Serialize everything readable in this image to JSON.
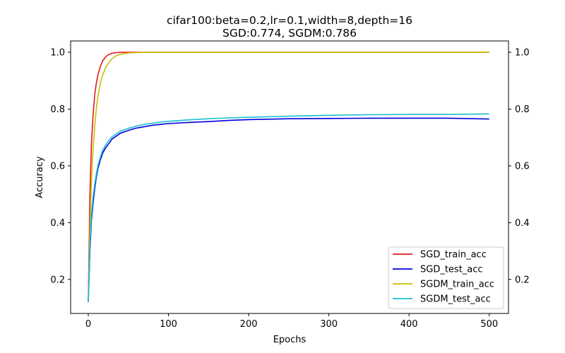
{
  "chart_data": {
    "type": "line",
    "title": "cifar100:beta=0.2,lr=0.1,width=8,depth=16",
    "subtitle": "SGD:0.774, SGDM:0.786",
    "xlabel": "Epochs",
    "ylabel": "Accuracy",
    "xlim": [
      -22,
      524
    ],
    "ylim": [
      0.08,
      1.04
    ],
    "xticks": [
      "0",
      "100",
      "200",
      "300",
      "400",
      "500"
    ],
    "xtick_values": [
      0,
      100,
      200,
      300,
      400,
      500
    ],
    "yticks": [
      "0.2",
      "0.4",
      "0.6",
      "0.8",
      "1.0"
    ],
    "ytick_values": [
      0.2,
      0.4,
      0.6,
      0.8,
      1.0
    ],
    "secondary_yticks": [
      "0.2",
      "0.4",
      "0.6",
      "0.8",
      "1.0"
    ],
    "grid": false,
    "legend_position": "lower-right",
    "series": [
      {
        "name": "SGD_train_acc",
        "color": "#e31a1c",
        "x": [
          0,
          2,
          4,
          6,
          8,
          10,
          12,
          15,
          18,
          22,
          26,
          30,
          35,
          40,
          50,
          60,
          80,
          100,
          150,
          200,
          300,
          400,
          500
        ],
        "y": [
          0.12,
          0.5,
          0.68,
          0.78,
          0.85,
          0.89,
          0.92,
          0.95,
          0.97,
          0.985,
          0.993,
          0.997,
          0.999,
          1.0,
          1.0,
          1.0,
          1.0,
          1.0,
          1.0,
          1.0,
          1.0,
          1.0,
          1.0
        ]
      },
      {
        "name": "SGD_test_acc",
        "color": "#0000dd",
        "x": [
          0,
          2,
          4,
          6,
          8,
          10,
          12,
          15,
          18,
          22,
          26,
          30,
          35,
          40,
          50,
          60,
          70,
          80,
          90,
          100,
          125,
          150,
          175,
          200,
          250,
          300,
          350,
          400,
          450,
          500
        ],
        "y": [
          0.12,
          0.3,
          0.41,
          0.47,
          0.52,
          0.56,
          0.59,
          0.62,
          0.645,
          0.665,
          0.68,
          0.695,
          0.705,
          0.715,
          0.725,
          0.733,
          0.738,
          0.743,
          0.746,
          0.749,
          0.753,
          0.756,
          0.76,
          0.763,
          0.766,
          0.767,
          0.768,
          0.768,
          0.768,
          0.765
        ]
      },
      {
        "name": "SGDM_train_acc",
        "color": "#c8be00",
        "x": [
          0,
          2,
          4,
          6,
          8,
          10,
          12,
          15,
          18,
          22,
          26,
          30,
          35,
          40,
          50,
          60,
          70,
          80,
          100,
          150,
          200,
          300,
          400,
          500
        ],
        "y": [
          0.12,
          0.38,
          0.55,
          0.66,
          0.74,
          0.8,
          0.845,
          0.89,
          0.92,
          0.948,
          0.966,
          0.978,
          0.988,
          0.993,
          0.998,
          0.999,
          1.0,
          1.0,
          1.0,
          1.0,
          1.0,
          1.0,
          1.0,
          1.0
        ]
      },
      {
        "name": "SGDM_test_acc",
        "color": "#17becf",
        "x": [
          0,
          2,
          4,
          6,
          8,
          10,
          12,
          15,
          18,
          22,
          26,
          30,
          35,
          40,
          50,
          60,
          70,
          80,
          90,
          100,
          125,
          150,
          175,
          200,
          250,
          300,
          350,
          400,
          450,
          500
        ],
        "y": [
          0.12,
          0.32,
          0.43,
          0.49,
          0.535,
          0.57,
          0.6,
          0.63,
          0.655,
          0.675,
          0.69,
          0.703,
          0.713,
          0.722,
          0.732,
          0.74,
          0.746,
          0.75,
          0.754,
          0.757,
          0.762,
          0.766,
          0.769,
          0.771,
          0.775,
          0.778,
          0.78,
          0.781,
          0.781,
          0.783
        ]
      }
    ]
  }
}
